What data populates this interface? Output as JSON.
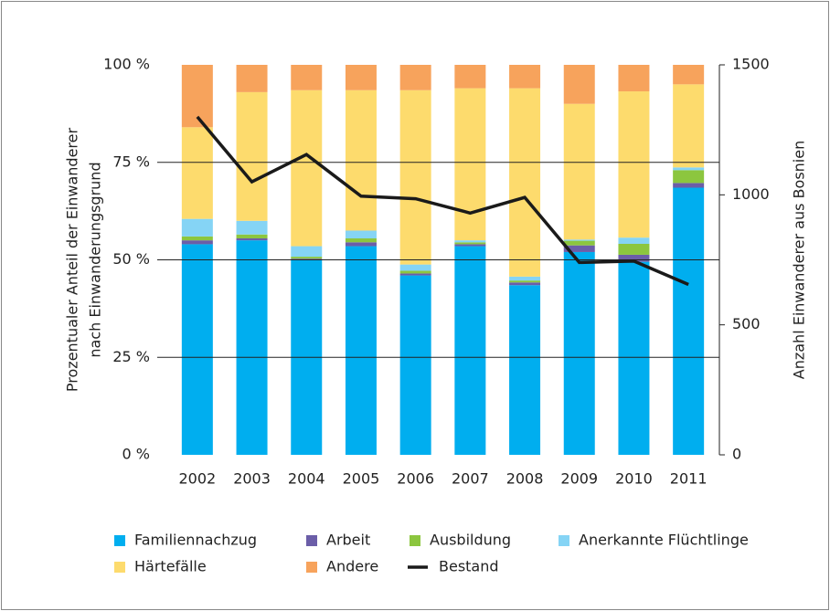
{
  "chart_data": {
    "type": "stacked_bar_line",
    "categories": [
      "2002",
      "2003",
      "2004",
      "2005",
      "2006",
      "2007",
      "2008",
      "2009",
      "2010",
      "2011"
    ],
    "y_label": [
      "Prozentualer Anteil der Einwanderer",
      "nach Einwanderungsgrund"
    ],
    "y2_label": "Anzahl Einwanderer aus Bosnien",
    "ylim": [
      0,
      100
    ],
    "yticks": [
      {
        "value": 0,
        "label": "0 %"
      },
      {
        "value": 25,
        "label": "25 %"
      },
      {
        "value": 50,
        "label": "50 %"
      },
      {
        "value": 75,
        "label": "75 %"
      },
      {
        "value": 100,
        "label": "100 %"
      }
    ],
    "y2lim": [
      0,
      1500
    ],
    "y2ticks": [
      0,
      500,
      1000,
      1500
    ],
    "grid": true,
    "legend": "bottom",
    "series": [
      {
        "name": "Familiennachzug",
        "color": "#00aeef",
        "values": [
          54,
          55,
          50,
          53.5,
          46,
          53.5,
          43.5,
          52,
          49.5,
          68.5
        ]
      },
      {
        "name": "Arbeit",
        "color": "#6b5ea8",
        "values": [
          1,
          0.5,
          0.3,
          1,
          0.5,
          0.5,
          0.7,
          1.7,
          1.8,
          1.2
        ]
      },
      {
        "name": "Ausbildung",
        "color": "#8cc63f",
        "values": [
          1,
          1,
          0.5,
          1,
          0.7,
          0.5,
          0.5,
          1.2,
          2.8,
          3.3
        ]
      },
      {
        "name": "Anerkannte Flüchtlinge",
        "color": "#85d4f5",
        "values": [
          4.5,
          3.5,
          2.7,
          2,
          1.6,
          0.5,
          1,
          0.3,
          1.6,
          0.7
        ]
      },
      {
        "name": "Härtefälle",
        "color": "#fddb6d",
        "values": [
          23.5,
          33,
          40,
          36,
          44.7,
          39,
          48.3,
          34.8,
          37.5,
          21.3
        ]
      },
      {
        "name": "Andere",
        "color": "#f7a35c",
        "values": [
          16,
          7,
          6.5,
          6.5,
          6.5,
          6,
          6,
          10,
          6.8,
          5
        ]
      },
      {
        "name": "Bestand",
        "color": "#1a1a1a",
        "axis": "y2",
        "values": [
          1300,
          1050,
          1155,
          995,
          985,
          930,
          990,
          740,
          745,
          655
        ]
      }
    ]
  }
}
